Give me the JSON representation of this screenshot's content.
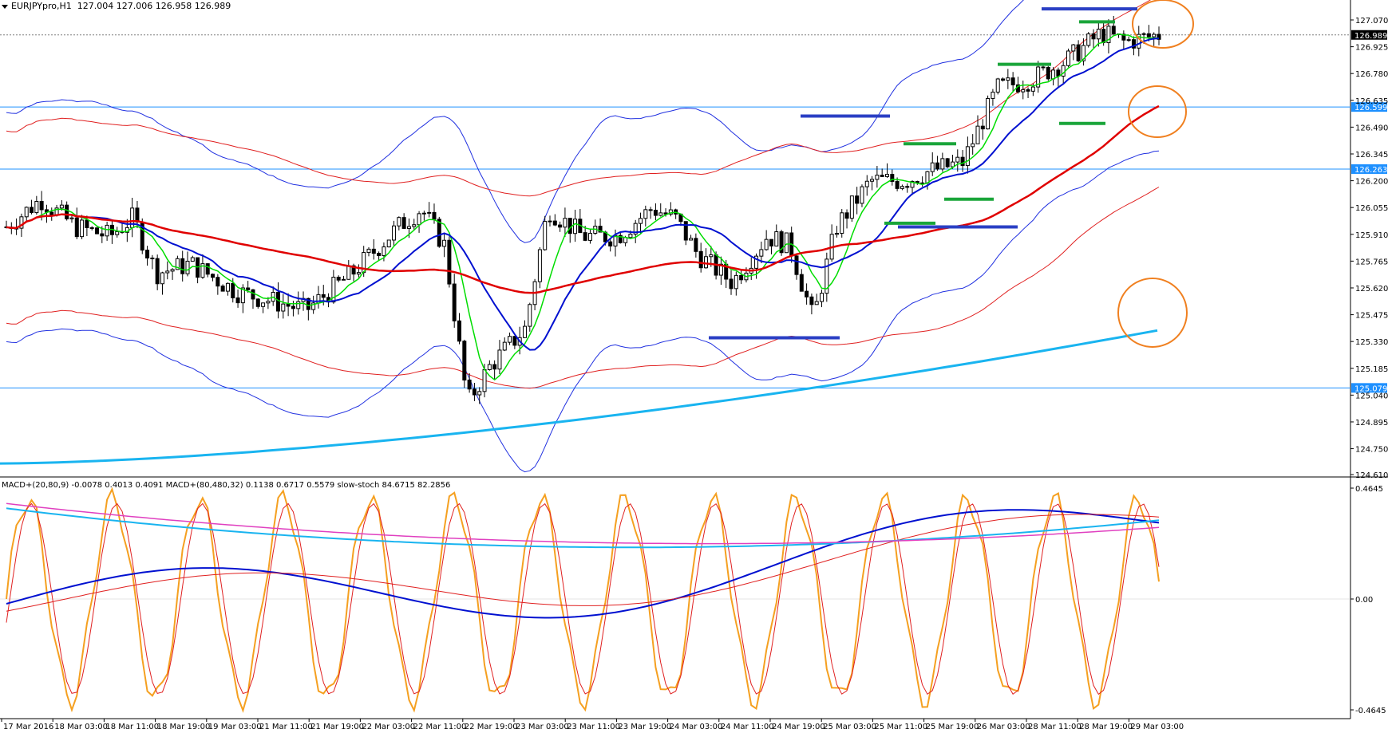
{
  "window": {
    "symbol_label": "EURJPYpro,H1",
    "ohlc_label": "127.004 127.006 126.958 126.989",
    "indicator_label": "MACD+(20,80,9) -0.0078 0.4013 0.4091  MACD+(80,480,32) 0.1138 0.6717 0.5579  slow-stoch 84.6715 82.2856"
  },
  "colors": {
    "background": "#ffffff",
    "grid_line": "#1e90ff",
    "price_line": "#7f7f7f",
    "ma_green": "#00dd00",
    "ma_blue": "#0010d0",
    "ma_red": "#e00000",
    "ma_cyan": "#19b4f0",
    "band_blue": "#2030e0",
    "band_red": "#e02020",
    "annotation_orange": "#f08020",
    "level_blue": "#2a3fc4",
    "level_green": "#1aa53a",
    "stoch_orange": "#f5a020",
    "macd_pink": "#e040c0"
  },
  "chart_data": [
    {
      "type": "candlestick",
      "title": "EURJPYpro,H1",
      "y_axis_ticks": [
        "127.070",
        "126.925",
        "126.780",
        "126.635",
        "126.490",
        "126.345",
        "126.200",
        "126.055",
        "125.910",
        "125.765",
        "125.620",
        "125.475",
        "125.330",
        "125.185",
        "125.040",
        "124.895",
        "124.750",
        "124.610"
      ],
      "ylim": [
        124.61,
        127.16
      ],
      "horizontal_lines": [
        {
          "value": 126.989,
          "label": "126.989",
          "style": "current-price"
        },
        {
          "value": 126.599,
          "label": "126.599",
          "style": "level"
        },
        {
          "value": 126.263,
          "label": "126.263",
          "style": "level"
        },
        {
          "value": 125.079,
          "label": "125.079",
          "style": "level"
        }
      ],
      "x_axis_ticks": [
        "17 Mar 2016",
        "18 Mar 03:00",
        "18 Mar 11:00",
        "18 Mar 19:00",
        "19 Mar 03:00",
        "21 Mar 11:00",
        "21 Mar 19:00",
        "22 Mar 03:00",
        "22 Mar 11:00",
        "22 Mar 19:00",
        "23 Mar 03:00",
        "23 Mar 11:00",
        "23 Mar 19:00",
        "24 Mar 03:00",
        "24 Mar 11:00",
        "24 Mar 19:00",
        "25 Mar 03:00",
        "25 Mar 11:00",
        "25 Mar 19:00",
        "26 Mar 03:00",
        "28 Mar 11:00",
        "28 Mar 19:00",
        "29 Mar 03:00"
      ],
      "last_price": 126.989,
      "open": 127.004,
      "high": 127.006,
      "low": 126.958,
      "close": 126.989
    },
    {
      "type": "line",
      "title": "MACD+(20,80,9) / MACD+(80,480,32) / slow-stoch",
      "y_axis_ticks": [
        "0.4645",
        "0.00",
        "-0.4645"
      ],
      "ylim": [
        -0.51,
        0.51
      ],
      "macd_fast": {
        "main": -0.0078,
        "signal": 0.4013,
        "hist": 0.4091
      },
      "macd_slow": {
        "main": 0.1138,
        "signal": 0.6717,
        "hist": 0.5579
      },
      "slow_stoch": {
        "k": 84.6715,
        "d": 82.2856
      }
    }
  ]
}
